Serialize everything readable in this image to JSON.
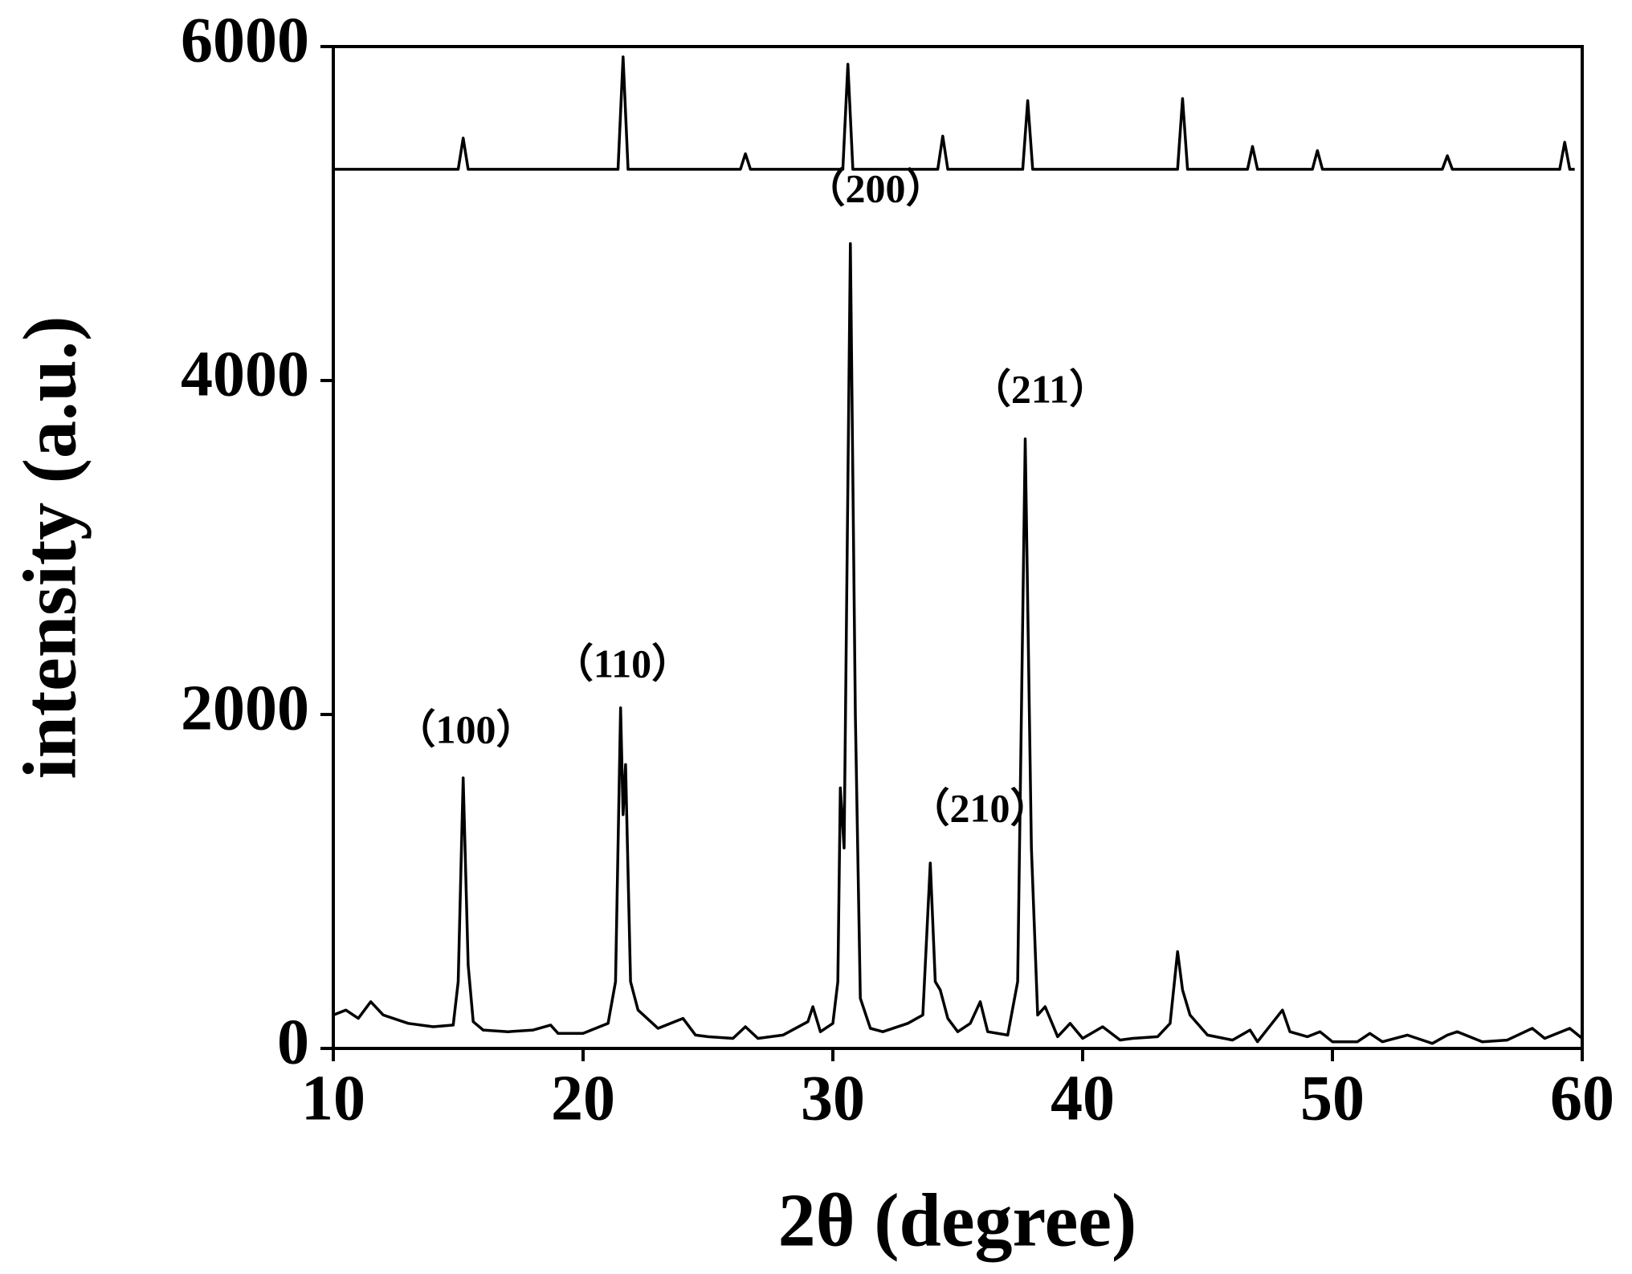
{
  "chart_data": {
    "type": "line",
    "xlabel": "2θ (degree)",
    "ylabel": "intensity (a.u.)",
    "xlim": [
      10,
      60
    ],
    "xticks": [
      10,
      20,
      30,
      40,
      50,
      60
    ],
    "ylim": [
      0,
      6000
    ],
    "yticks": [
      0,
      2000,
      4000,
      6000
    ],
    "annotations": [
      "（100）",
      "（110）",
      "（200）",
      "（210）",
      "（211）"
    ],
    "series": [
      {
        "color": "#000000",
        "x": [
          10,
          10.5,
          11,
          11.5,
          12,
          13,
          14,
          14.8,
          15,
          15.2,
          15.4,
          15.6,
          16,
          17,
          18,
          18.7,
          19,
          20,
          21,
          21.3,
          21.5,
          21.6,
          21.7,
          21.9,
          22.2,
          23,
          24,
          24.5,
          25,
          26,
          26.5,
          27,
          28,
          29,
          29.2,
          29.5,
          30,
          30.2,
          30.3,
          30.45,
          30.7,
          30.9,
          31.1,
          31.5,
          32,
          33,
          33.6,
          33.9,
          34.1,
          34.3,
          34.6,
          35,
          35.5,
          35.9,
          36.2,
          37,
          37.4,
          37.7,
          37.95,
          38.2,
          38.5,
          39,
          39.5,
          40,
          40.8,
          41.5,
          42,
          43,
          43.5,
          43.8,
          44,
          44.3,
          45,
          46,
          46.7,
          47,
          48,
          48.3,
          49,
          49.5,
          50,
          51,
          51.5,
          52,
          53,
          54,
          54.6,
          55,
          56,
          57,
          58,
          58.5,
          59.5,
          60
        ],
        "values": [
          200,
          230,
          180,
          280,
          200,
          150,
          130,
          140,
          400,
          1620,
          500,
          160,
          110,
          100,
          110,
          140,
          90,
          90,
          150,
          400,
          2040,
          1400,
          1700,
          400,
          230,
          120,
          180,
          80,
          70,
          60,
          130,
          60,
          80,
          160,
          250,
          100,
          150,
          400,
          1560,
          1200,
          4820,
          2000,
          300,
          120,
          100,
          150,
          200,
          1110,
          400,
          350,
          180,
          100,
          150,
          280,
          100,
          80,
          400,
          3650,
          1200,
          200,
          250,
          70,
          150,
          60,
          130,
          50,
          60,
          70,
          150,
          580,
          350,
          200,
          80,
          50,
          110,
          40,
          230,
          100,
          70,
          100,
          40,
          40,
          90,
          40,
          80,
          30,
          80,
          100,
          40,
          50,
          120,
          60,
          120,
          60
        ]
      },
      {
        "color": "#000000",
        "x": [
          10,
          15,
          15.2,
          15.4,
          21.4,
          21.6,
          21.8,
          26.3,
          26.5,
          26.7,
          30.4,
          30.6,
          30.8,
          34.2,
          34.4,
          34.6,
          37.6,
          37.8,
          38,
          43.8,
          44,
          44.2,
          46.6,
          46.8,
          47,
          49.2,
          49.4,
          49.6,
          54.4,
          54.6,
          54.8,
          59.1,
          59.3,
          59.5,
          59.7
        ],
        "values": [
          5265,
          5265,
          5452,
          5265,
          5265,
          5938,
          5265,
          5265,
          5358,
          5265,
          5265,
          5894,
          5265,
          5265,
          5464,
          5265,
          5265,
          5676,
          5265,
          5265,
          5688,
          5265,
          5265,
          5402,
          5265,
          5265,
          5377,
          5265,
          5265,
          5346,
          5265,
          5265,
          5427,
          5265,
          5265
        ]
      }
    ]
  }
}
